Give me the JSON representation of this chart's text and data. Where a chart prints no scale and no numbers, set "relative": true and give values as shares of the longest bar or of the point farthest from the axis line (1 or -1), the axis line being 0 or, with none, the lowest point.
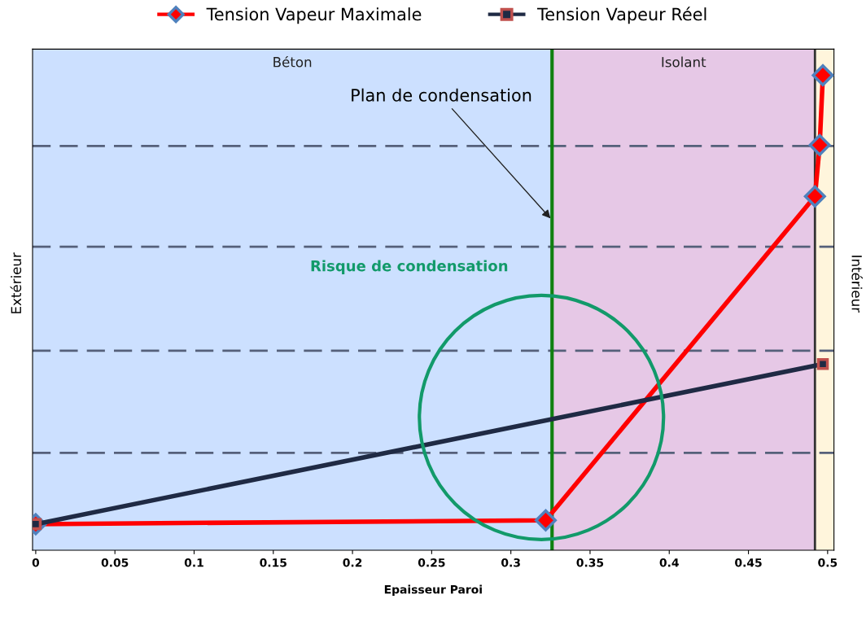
{
  "chart_data": {
    "type": "line",
    "relative": true,
    "xlabel": "Epaisseur Paroi",
    "xlim": [
      -0.002,
      0.504
    ],
    "xticks": [
      0,
      0.05,
      0.1,
      0.15,
      0.2,
      0.25,
      0.3,
      0.35,
      0.4,
      0.45,
      0.5
    ],
    "legend": "top",
    "line_style": "solid",
    "series": [
      {
        "name": "Tension Vapeur Maximale",
        "color": "#ff0000",
        "marker": "diamond",
        "x": [
          0,
          0.322,
          0.492,
          0.495,
          0.497
        ],
        "values": [
          0.055,
          0.063,
          0.745,
          0.853,
          1.0
        ]
      },
      {
        "name": "Tension Vapeur Réel",
        "color": "#1f2a44",
        "marker": "square",
        "x": [
          0,
          0.497
        ],
        "values": [
          0.055,
          0.392
        ]
      }
    ],
    "bands": [
      {
        "axis": "x",
        "from": -0.002,
        "to": 0.326,
        "label": "Béton",
        "color": "#cce0ff"
      },
      {
        "axis": "x",
        "from": 0.326,
        "to": 0.492,
        "label": "Isolant",
        "color": "#e6c8e6"
      },
      {
        "axis": "x",
        "from": 0.492,
        "to": 0.504,
        "label": null,
        "color": "#fff5dc"
      }
    ],
    "ref_lines": [
      {
        "axis": "y",
        "value": 0.205,
        "label": null,
        "color": "#55607a",
        "line_style": "dashed"
      },
      {
        "axis": "y",
        "value": 0.42,
        "label": null,
        "color": "#55607a",
        "line_style": "dashed"
      },
      {
        "axis": "y",
        "value": 0.639,
        "label": null,
        "color": "#55607a",
        "line_style": "dashed"
      },
      {
        "axis": "y",
        "value": 0.851,
        "label": null,
        "color": "#55607a",
        "line_style": "dashed"
      },
      {
        "axis": "x",
        "value": 0.326,
        "label": null,
        "color": "#108010",
        "line_style": "solid"
      },
      {
        "axis": "x",
        "value": 0.492,
        "label": null,
        "color": "#333333",
        "line_style": "solid"
      }
    ],
    "annotations": [
      "Extérieur",
      "Intérieur",
      {
        "text": "Plan de condensation",
        "x": 0.326,
        "y": 0.695
      },
      "Risque de condensation"
    ]
  }
}
